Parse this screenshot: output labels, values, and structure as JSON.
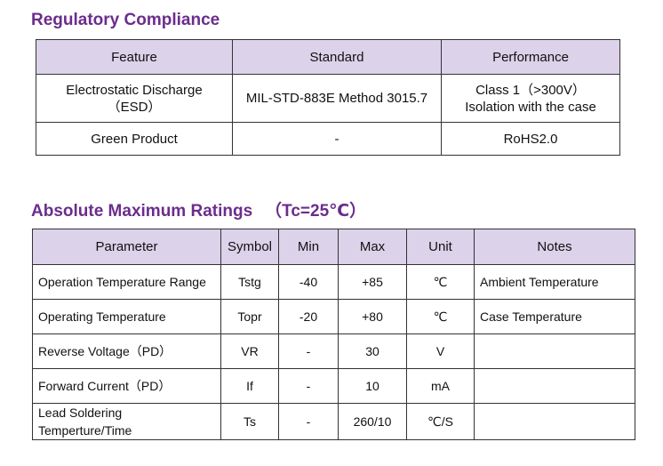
{
  "regulatory": {
    "title": "Regulatory Compliance",
    "headers": [
      "Feature",
      "Standard",
      "Performance"
    ],
    "rows": [
      {
        "feature_lines": [
          "Electrostatic Discharge",
          "（ESD）"
        ],
        "standard": "MIL-STD-883E Method 3015.7",
        "performance_lines": [
          "Class 1（>300V）",
          "Isolation with the case"
        ]
      },
      {
        "feature_lines": [
          "Green Product"
        ],
        "standard": "-",
        "performance_lines": [
          "RoHS2.0"
        ]
      }
    ]
  },
  "ratings": {
    "title": "Absolute Maximum Ratings",
    "condition": "（Tc=25℃）",
    "headers": [
      "Parameter",
      "Symbol",
      "Min",
      "Max",
      "Unit",
      "Notes"
    ],
    "rows": [
      {
        "parameter_lines": [
          "Operation Temperature Range"
        ],
        "symbol": "Tstg",
        "min": "-40",
        "max": "+85",
        "unit": "℃",
        "notes": "Ambient Temperature"
      },
      {
        "parameter_lines": [
          "Operating Temperature"
        ],
        "symbol": "Topr",
        "min": "-20",
        "max": "+80",
        "unit": "℃",
        "notes": "Case Temperature"
      },
      {
        "parameter_lines": [
          "Reverse Voltage（PD）"
        ],
        "symbol": "VR",
        "min": "-",
        "max": "30",
        "unit": "V",
        "notes": ""
      },
      {
        "parameter_lines": [
          "Forward Current（PD）"
        ],
        "symbol": "If",
        "min": "-",
        "max": "10",
        "unit": "mA",
        "notes": ""
      },
      {
        "parameter_lines": [
          "Lead Soldering",
          "Temperture/Time"
        ],
        "symbol": "Ts",
        "min": "-",
        "max": "260/10",
        "unit": "℃/S",
        "notes": ""
      }
    ]
  },
  "colors": {
    "title": "#6b2d8c",
    "header_bg": "#dcd2ea",
    "border": "#333333",
    "text": "#111111"
  }
}
